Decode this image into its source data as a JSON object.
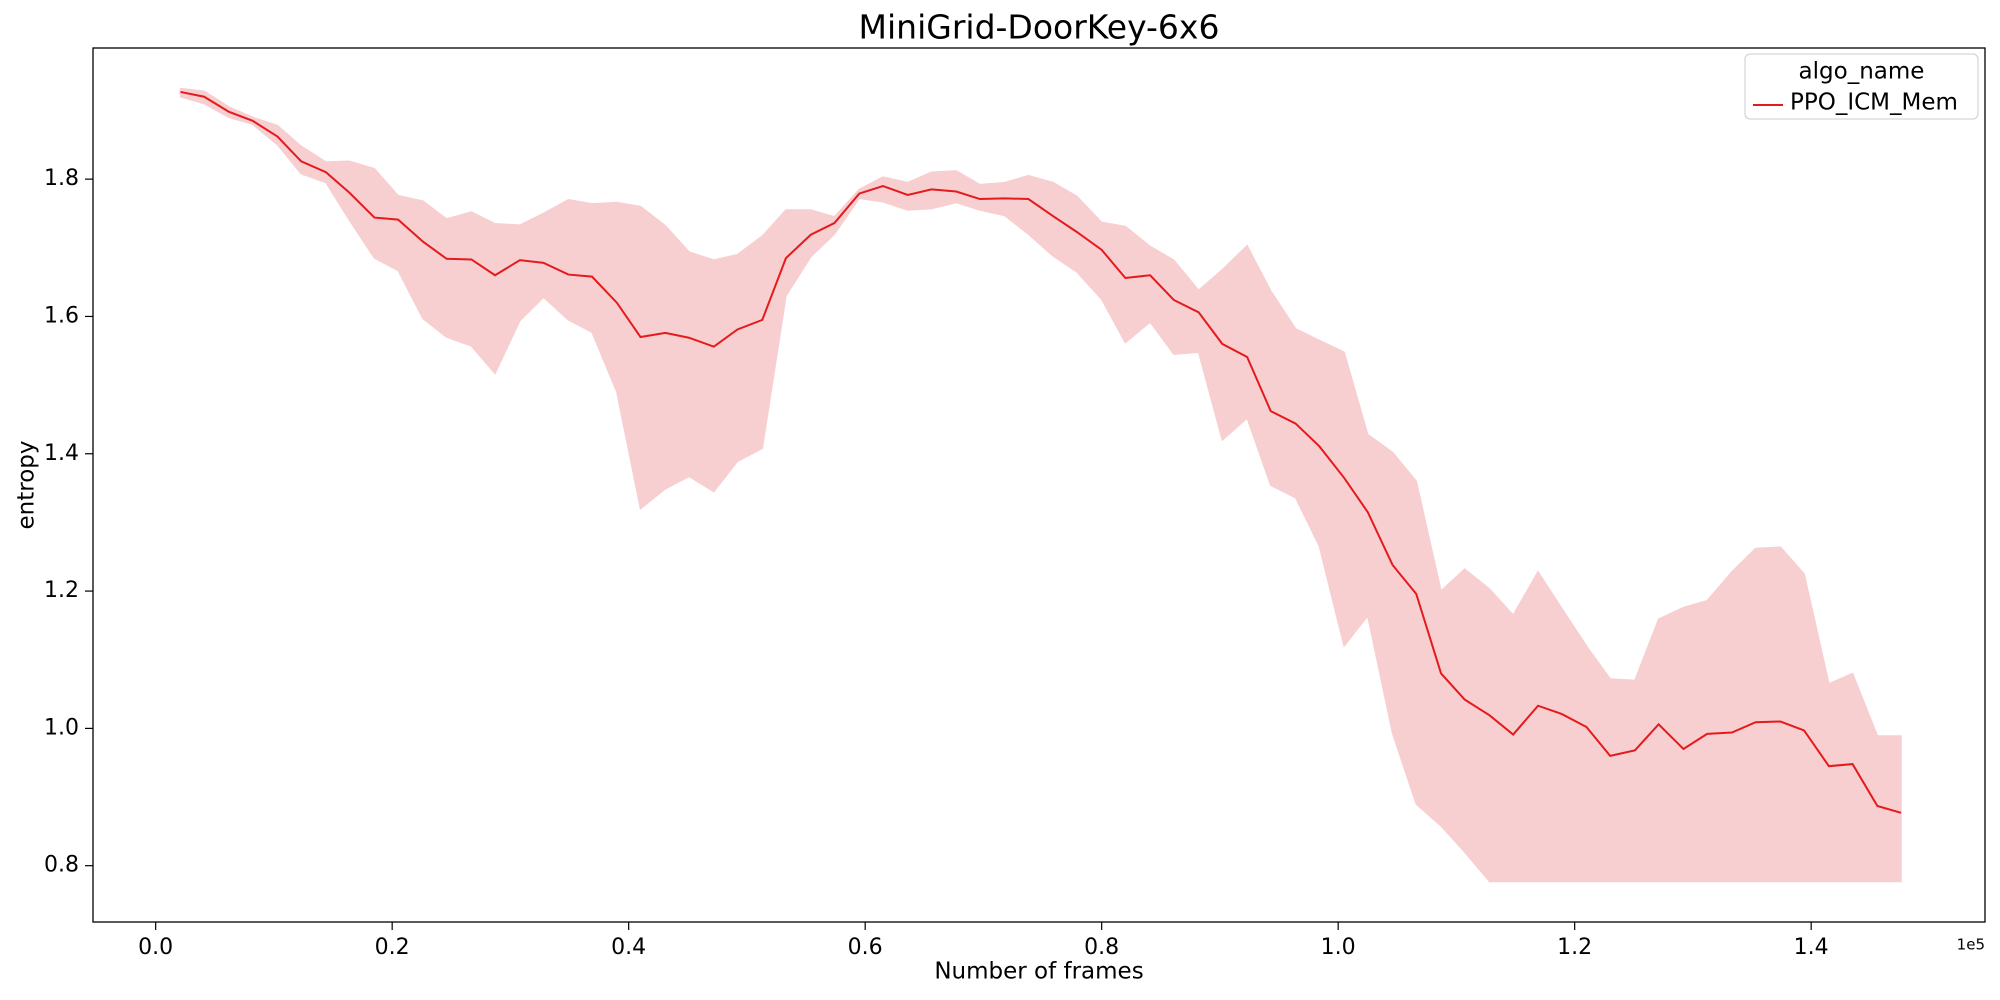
{
  "chart_data": {
    "type": "line",
    "title": "MiniGrid-DoorKey-6x6",
    "x_label": "Number of frames",
    "y_label": "entropy",
    "x_offset_label": "1e5",
    "legend_title": "algo_name",
    "legend_position": "upper right",
    "grid": false,
    "xlim": [
      -0.053,
      1.547
    ],
    "ylim": [
      0.718,
      1.991
    ],
    "xticks": [
      {
        "value": 0,
        "label": "0.0"
      },
      0.2,
      0.4,
      0.6,
      0.8,
      {
        "value": 1,
        "label": "1.0"
      },
      1.2,
      1.4
    ],
    "yticks": [
      0.8,
      {
        "value": 1,
        "label": "1.0"
      },
      1.2,
      1.4,
      1.6,
      1.8
    ],
    "x": [
      0.021,
      0.041,
      0.062,
      0.082,
      0.103,
      0.123,
      0.144,
      0.164,
      0.185,
      0.205,
      0.226,
      0.246,
      0.267,
      0.287,
      0.308,
      0.328,
      0.349,
      0.369,
      0.39,
      0.41,
      0.431,
      0.451,
      0.472,
      0.492,
      0.513,
      0.533,
      0.554,
      0.574,
      0.595,
      0.615,
      0.636,
      0.656,
      0.677,
      0.697,
      0.718,
      0.738,
      0.759,
      0.779,
      0.8,
      0.82,
      0.841,
      0.861,
      0.882,
      0.902,
      0.923,
      0.943,
      0.964,
      0.984,
      1.005,
      1.025,
      1.046,
      1.066,
      1.087,
      1.107,
      1.128,
      1.148,
      1.169,
      1.189,
      1.21,
      1.23,
      1.251,
      1.271,
      1.292,
      1.312,
      1.333,
      1.353,
      1.374,
      1.394,
      1.415,
      1.435,
      1.456,
      1.476
    ],
    "series": [
      {
        "name": "PPO_ICM_Mem",
        "color": "#e41a1c",
        "band_color": "#f8cfd1",
        "values": [
          1.927,
          1.92,
          1.898,
          1.885,
          1.862,
          1.826,
          1.81,
          1.78,
          1.744,
          1.741,
          1.709,
          1.684,
          1.683,
          1.66,
          1.682,
          1.678,
          1.661,
          1.658,
          1.62,
          1.57,
          1.576,
          1.569,
          1.556,
          1.581,
          1.595,
          1.685,
          1.719,
          1.736,
          1.779,
          1.79,
          1.777,
          1.785,
          1.782,
          1.771,
          1.772,
          1.771,
          1.746,
          1.723,
          1.697,
          1.656,
          1.66,
          1.624,
          1.606,
          1.56,
          1.541,
          1.462,
          1.444,
          1.411,
          1.365,
          1.315,
          1.238,
          1.196,
          1.08,
          1.042,
          1.019,
          0.991,
          1.033,
          1.021,
          1.002,
          0.96,
          0.968,
          1.006,
          0.97,
          0.992,
          0.994,
          1.009,
          1.01,
          0.997,
          0.945,
          0.948,
          0.887,
          0.877
        ],
        "lower": [
          1.92,
          1.91,
          1.89,
          1.88,
          1.85,
          1.808,
          1.795,
          1.74,
          1.685,
          1.667,
          1.597,
          1.57,
          1.557,
          1.517,
          1.594,
          1.628,
          1.595,
          1.577,
          1.49,
          1.32,
          1.349,
          1.367,
          1.345,
          1.389,
          1.408,
          1.63,
          1.687,
          1.72,
          1.772,
          1.767,
          1.755,
          1.757,
          1.766,
          1.755,
          1.747,
          1.72,
          1.688,
          1.665,
          1.625,
          1.562,
          1.592,
          1.545,
          1.548,
          1.42,
          1.452,
          1.354,
          1.336,
          1.266,
          1.12,
          1.164,
          0.993,
          0.89,
          0.858,
          0.82,
          0.777,
          0.777,
          0.777,
          0.777,
          0.777,
          0.777,
          0.777,
          0.777,
          0.777,
          0.777,
          0.777,
          0.777,
          0.777,
          0.777,
          0.777,
          0.777,
          0.777,
          0.777
        ],
        "upper": [
          1.932,
          1.928,
          1.905,
          1.89,
          1.878,
          1.848,
          1.825,
          1.826,
          1.815,
          1.776,
          1.768,
          1.742,
          1.752,
          1.735,
          1.733,
          1.75,
          1.77,
          1.764,
          1.766,
          1.76,
          1.732,
          1.694,
          1.682,
          1.69,
          1.717,
          1.755,
          1.755,
          1.745,
          1.785,
          1.803,
          1.795,
          1.81,
          1.812,
          1.792,
          1.795,
          1.805,
          1.795,
          1.775,
          1.737,
          1.731,
          1.702,
          1.682,
          1.638,
          1.668,
          1.703,
          1.637,
          1.582,
          1.565,
          1.548,
          1.428,
          1.402,
          1.36,
          1.2,
          1.232,
          1.203,
          1.165,
          1.228,
          1.175,
          1.12,
          1.072,
          1.07,
          1.159,
          1.176,
          1.186,
          1.228,
          1.262,
          1.264,
          1.225,
          1.065,
          1.08,
          0.989,
          0.989
        ]
      }
    ]
  }
}
